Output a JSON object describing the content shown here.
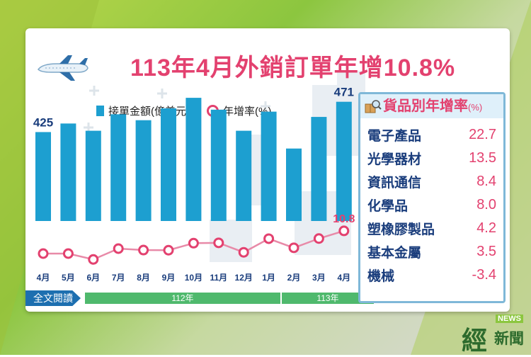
{
  "title": "113年4月外銷訂單年增10.8%",
  "legend": {
    "bar_label": "接單金額(億美元)",
    "line_label": "年增率(%)"
  },
  "chart_data": {
    "type": "bar",
    "categories": [
      "4月",
      "5月",
      "6月",
      "7月",
      "8月",
      "9月",
      "10月",
      "11月",
      "12月",
      "1月",
      "2月",
      "3月",
      "4月"
    ],
    "series": [
      {
        "name": "接單金額(億美元)",
        "type": "bar",
        "values": [
          425,
          438,
          427,
          452,
          443,
          461,
          477,
          459,
          427,
          456,
          400,
          448,
          471
        ]
      },
      {
        "name": "年增率(%)",
        "type": "line",
        "values": [
          -17.6,
          -17.6,
          -24.9,
          -11.4,
          -13.2,
          -13.4,
          -4.6,
          -4.2,
          -16.0,
          1.0,
          -10.4,
          1.2,
          10.8
        ]
      }
    ],
    "bar_labels": [
      {
        "category_index": 0,
        "text": "425"
      },
      {
        "category_index": 12,
        "text": "471"
      }
    ],
    "line_labels": [
      {
        "category_index": 12,
        "text": "10.8"
      }
    ],
    "year_groups": [
      {
        "label": "112年",
        "from": "4月",
        "to": "12月"
      },
      {
        "label": "113年",
        "from": "1月",
        "to": "4月"
      }
    ],
    "colors": {
      "bar": "#1d9fd0",
      "line": "#e3416f",
      "year_band": "#4fb96d",
      "title": "#e3416f"
    }
  },
  "panel": {
    "title": "貨品別年增率",
    "unit": "(%)",
    "rows": [
      {
        "name": "電子產品",
        "value": "22.7"
      },
      {
        "name": "光學器材",
        "value": "13.5"
      },
      {
        "name": "資訊通信",
        "value": "8.4"
      },
      {
        "name": "化學品",
        "value": "8.0"
      },
      {
        "name": "塑橡膠製品",
        "value": "4.2"
      },
      {
        "name": "基本金屬",
        "value": "3.5"
      },
      {
        "name": "機械",
        "value": "-3.4"
      }
    ]
  },
  "read_more": "全文閱讀",
  "logo": {
    "news": "NEWS",
    "main": "經",
    "sub": "新聞"
  }
}
